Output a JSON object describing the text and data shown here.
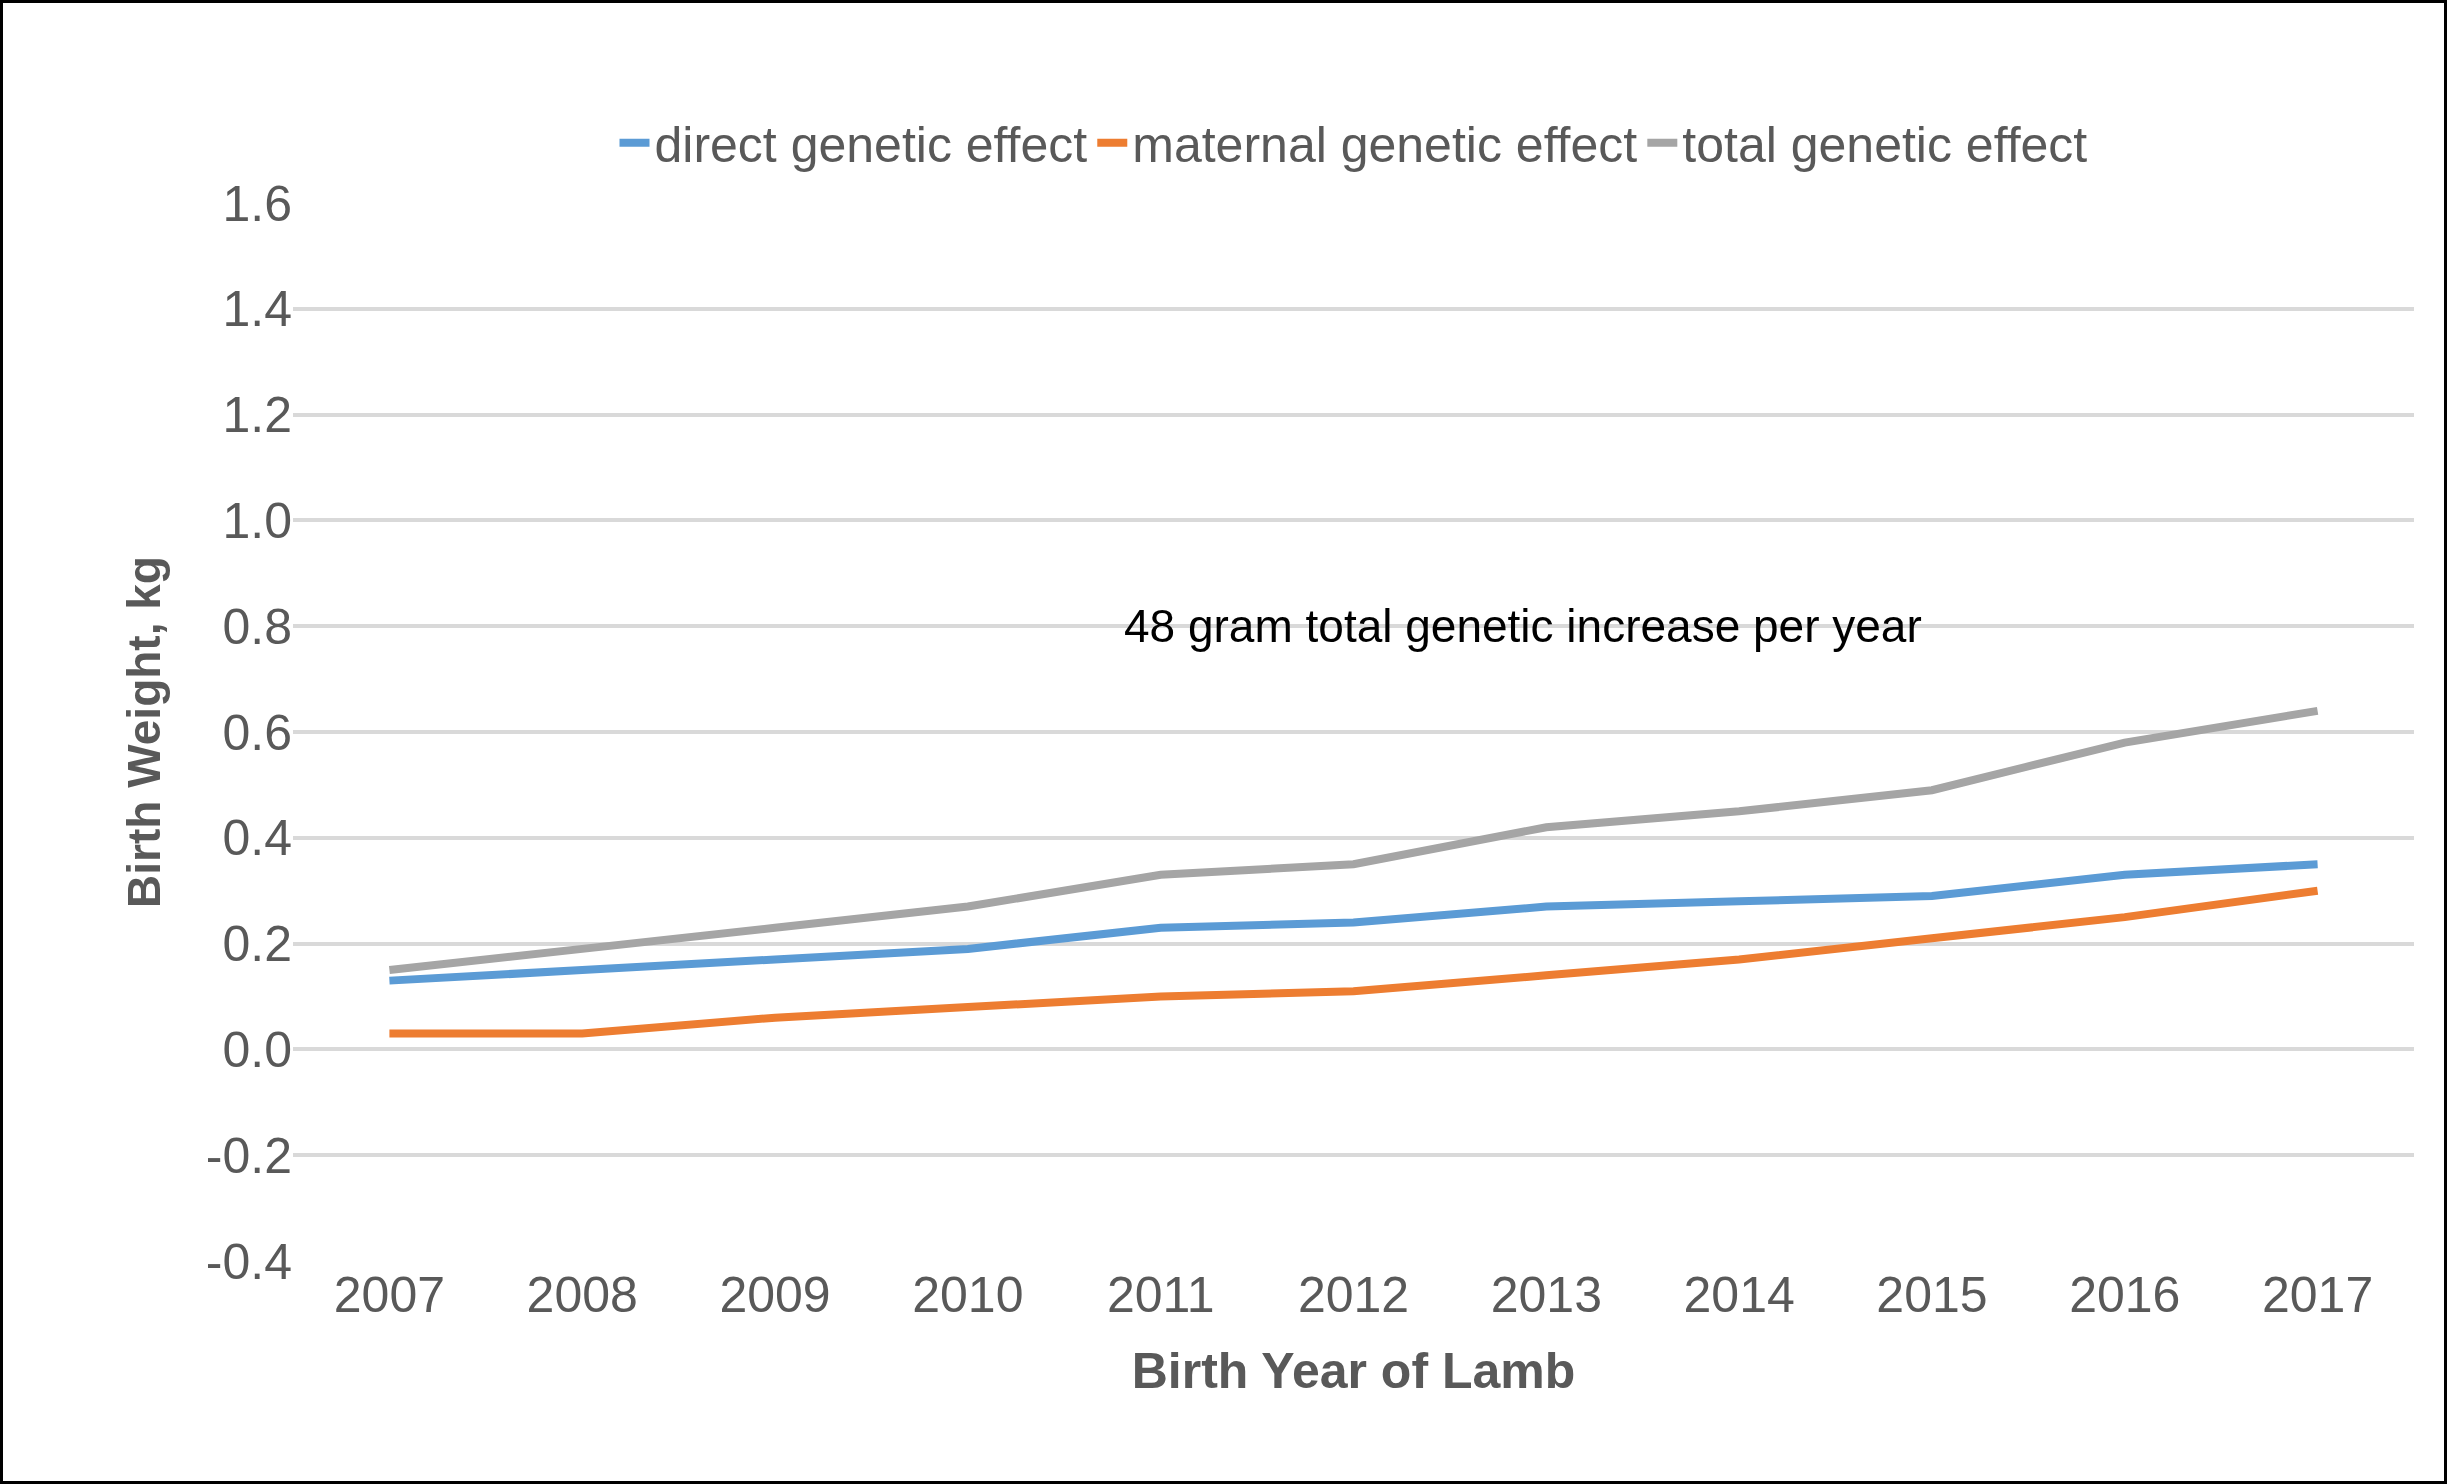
{
  "chart_data": {
    "type": "line",
    "xlabel": "Birth Year of Lamb",
    "ylabel": "Birth Weight, kg",
    "categories": [
      "2007",
      "2008",
      "2009",
      "2010",
      "2011",
      "2012",
      "2013",
      "2014",
      "2015",
      "2016",
      "2017"
    ],
    "series": [
      {
        "name": "direct genetic effect",
        "color": "#5b9bd5",
        "values": [
          0.13,
          0.15,
          0.17,
          0.19,
          0.23,
          0.24,
          0.27,
          0.28,
          0.29,
          0.33,
          0.35
        ]
      },
      {
        "name": "maternal genetic effect",
        "color": "#ed7d31",
        "values": [
          0.03,
          0.03,
          0.06,
          0.08,
          0.1,
          0.11,
          0.14,
          0.17,
          0.21,
          0.25,
          0.3
        ]
      },
      {
        "name": "total genetic effect",
        "color": "#a5a5a5",
        "values": [
          0.15,
          0.19,
          0.23,
          0.27,
          0.33,
          0.35,
          0.42,
          0.45,
          0.49,
          0.58,
          0.64
        ]
      }
    ],
    "annotations": [
      "48 gram total genetic increase per year"
    ],
    "ylim": [
      -0.4,
      1.6
    ],
    "yticks": [
      {
        "value": -0.4,
        "label": "-0.4"
      },
      {
        "value": -0.2,
        "label": "-0.2"
      },
      {
        "value": 0,
        "label": "0.0"
      },
      {
        "value": 0.2,
        "label": "0.2"
      },
      {
        "value": 0.4,
        "label": "0.4"
      },
      {
        "value": 0.6,
        "label": "0.6"
      },
      {
        "value": 0.8,
        "label": "0.8"
      },
      {
        "value": 1.0,
        "label": "1.0"
      },
      {
        "value": 1.2,
        "label": "1.2"
      },
      {
        "value": 1.4,
        "label": "1.4"
      },
      {
        "value": 1.6,
        "label": "1.6"
      }
    ],
    "grid": "y",
    "legend": "top",
    "line_style": "solid",
    "marker": "none"
  }
}
